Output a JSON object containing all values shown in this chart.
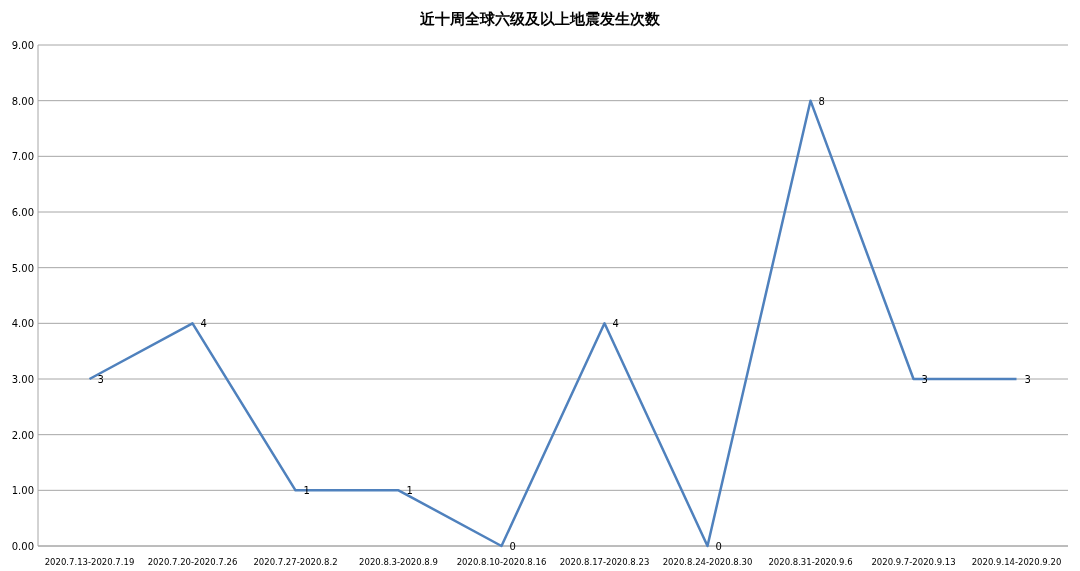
{
  "chart_data": {
    "type": "line",
    "title": "近十周全球六级及以上地震发生次数",
    "categories": [
      "2020.7.13-2020.7.19",
      "2020.7.20-2020.7.26",
      "2020.7.27-2020.8.2",
      "2020.8.3-2020.8.9",
      "2020.8.10-2020.8.16",
      "2020.8.17-2020.8.23",
      "2020.8.24-2020.8.30",
      "2020.8.31-2020.9.6",
      "2020.9.7-2020.9.13",
      "2020.9.14-2020.9.20"
    ],
    "series": [
      {
        "color": "#4f81bd",
        "values": [
          3,
          4,
          1,
          1,
          0,
          4,
          0,
          8,
          3,
          3
        ]
      }
    ],
    "ylim": [
      0,
      9
    ],
    "yticks": [
      {
        "value": 0,
        "label": "0.00"
      },
      {
        "value": 1,
        "label": "1.00"
      },
      {
        "value": 2,
        "label": "2.00"
      },
      {
        "value": 3,
        "label": "3.00"
      },
      {
        "value": 4,
        "label": "4.00"
      },
      {
        "value": 5,
        "label": "5.00"
      },
      {
        "value": 6,
        "label": "6.00"
      },
      {
        "value": 7,
        "label": "7.00"
      },
      {
        "value": 8,
        "label": "8.00"
      },
      {
        "value": 9,
        "label": "9.00"
      }
    ],
    "grid": "y",
    "data_labels": true,
    "marker": "none",
    "line_style": "solid"
  }
}
